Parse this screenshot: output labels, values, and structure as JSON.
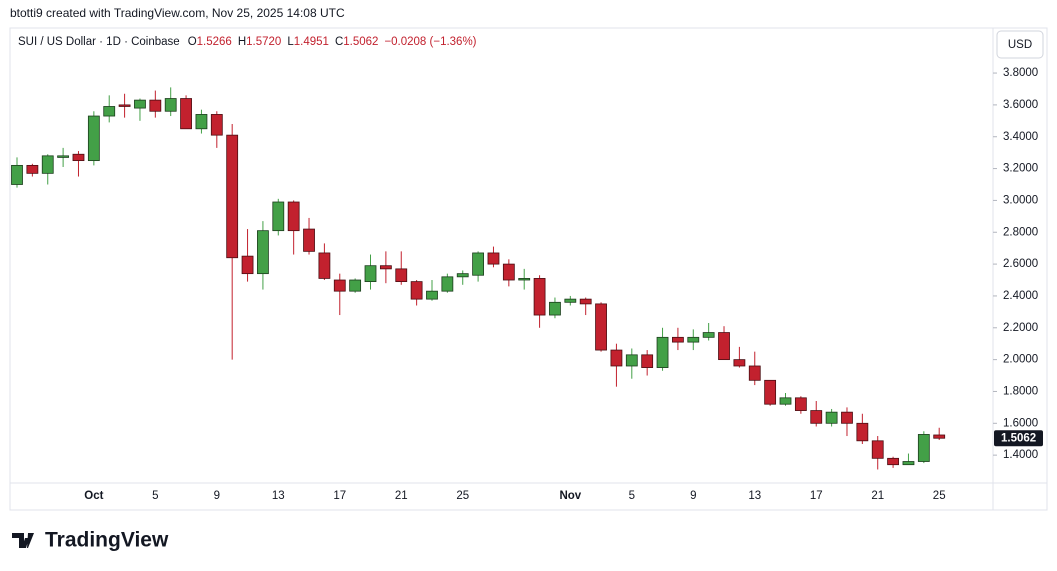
{
  "header": "btotti9 created with TradingView.com, Nov 25, 2025 14:08 UTC",
  "brand": "TradingView",
  "chart_data": {
    "type": "candlestick",
    "title": "SUI / US Dollar · 1D · Coinbase",
    "legend": [
      {
        "key": "O",
        "value": "1.5266"
      },
      {
        "key": "H",
        "value": "1.5720"
      },
      {
        "key": "L",
        "value": "1.4951"
      },
      {
        "key": "C",
        "value": "1.5062"
      },
      {
        "key": "",
        "value": "−0.0208 (−1.36%)"
      }
    ],
    "currency": "USD",
    "categories": [
      null,
      null,
      null,
      null,
      null,
      "Oct",
      null,
      null,
      null,
      "5",
      null,
      null,
      null,
      "9",
      null,
      null,
      null,
      "13",
      null,
      null,
      null,
      "17",
      null,
      null,
      null,
      "21",
      null,
      null,
      null,
      "25",
      null,
      null,
      null,
      null,
      null,
      null,
      "Nov",
      null,
      null,
      null,
      "5",
      null,
      null,
      null,
      "9",
      null,
      null,
      null,
      "13",
      null,
      null,
      null,
      "17",
      null,
      null,
      null,
      "21",
      null,
      null,
      null,
      "25"
    ],
    "open": [
      3.1,
      3.22,
      3.17,
      3.27,
      3.29,
      3.25,
      3.53,
      3.6,
      3.58,
      3.63,
      3.56,
      3.64,
      3.45,
      3.54,
      3.41,
      2.65,
      2.54,
      2.81,
      2.99,
      2.82,
      2.67,
      2.5,
      2.43,
      2.49,
      2.59,
      2.57,
      2.49,
      2.38,
      2.43,
      2.52,
      2.53,
      2.67,
      2.6,
      2.5,
      2.51,
      2.28,
      2.36,
      2.38,
      2.35,
      2.06,
      1.96,
      2.03,
      1.95,
      2.14,
      2.11,
      2.14,
      2.17,
      2.0,
      1.96,
      1.87,
      1.72,
      1.76,
      1.68,
      1.6,
      1.67,
      1.6,
      1.49,
      1.38,
      1.34,
      1.36,
      1.5266
    ],
    "high": [
      3.27,
      3.23,
      3.29,
      3.33,
      3.31,
      3.56,
      3.66,
      3.67,
      3.64,
      3.69,
      3.71,
      3.66,
      3.57,
      3.56,
      3.48,
      2.82,
      2.87,
      3.01,
      3.0,
      2.89,
      2.73,
      2.54,
      2.51,
      2.66,
      2.68,
      2.68,
      2.5,
      2.5,
      2.54,
      2.56,
      2.68,
      2.71,
      2.63,
      2.57,
      2.53,
      2.39,
      2.4,
      2.39,
      2.36,
      2.1,
      2.07,
      2.06,
      2.2,
      2.2,
      2.19,
      2.23,
      2.21,
      2.08,
      2.05,
      1.87,
      1.79,
      1.77,
      1.74,
      1.69,
      1.7,
      1.66,
      1.52,
      1.39,
      1.41,
      1.55,
      1.572
    ],
    "low": [
      3.08,
      3.15,
      3.1,
      3.21,
      3.15,
      3.22,
      3.49,
      3.52,
      3.5,
      3.52,
      3.53,
      3.45,
      3.42,
      3.33,
      2.0,
      2.49,
      2.44,
      2.78,
      2.66,
      2.66,
      2.5,
      2.28,
      2.42,
      2.44,
      2.48,
      2.47,
      2.34,
      2.37,
      2.42,
      2.47,
      2.49,
      2.58,
      2.46,
      2.44,
      2.2,
      2.26,
      2.34,
      2.28,
      2.05,
      1.83,
      1.88,
      1.9,
      1.93,
      2.06,
      2.06,
      2.12,
      2.0,
      1.95,
      1.84,
      1.71,
      1.71,
      1.66,
      1.58,
      1.58,
      1.52,
      1.47,
      1.31,
      1.32,
      1.34,
      1.35,
      1.4951
    ],
    "close": [
      3.22,
      3.17,
      3.28,
      3.28,
      3.25,
      3.53,
      3.59,
      3.59,
      3.63,
      3.56,
      3.64,
      3.45,
      3.54,
      3.41,
      2.64,
      2.54,
      2.81,
      2.99,
      2.81,
      2.68,
      2.51,
      2.43,
      2.5,
      2.59,
      2.57,
      2.49,
      2.38,
      2.43,
      2.52,
      2.54,
      2.67,
      2.6,
      2.5,
      2.51,
      2.28,
      2.36,
      2.38,
      2.35,
      2.06,
      1.96,
      2.03,
      1.95,
      2.14,
      2.11,
      2.14,
      2.17,
      2.0,
      1.96,
      1.87,
      1.72,
      1.76,
      1.68,
      1.6,
      1.67,
      1.6,
      1.49,
      1.38,
      1.34,
      1.36,
      1.53,
      1.5062
    ],
    "up_color": "#43a047",
    "down_color": "#c2212e",
    "last_price": {
      "value": 1.5062,
      "label": "1.5062"
    },
    "ylim": [
      1.225,
      4.083
    ],
    "yticks": [
      {
        "value": 1.4,
        "label": "1.4000"
      },
      {
        "value": 1.6,
        "label": "1.6000"
      },
      {
        "value": 1.8,
        "label": "1.8000"
      },
      {
        "value": 2.0,
        "label": "2.0000"
      },
      {
        "value": 2.2,
        "label": "2.2000"
      },
      {
        "value": 2.4,
        "label": "2.4000"
      },
      {
        "value": 2.6,
        "label": "2.6000"
      },
      {
        "value": 2.8,
        "label": "2.8000"
      },
      {
        "value": 3.0,
        "label": "3.0000"
      },
      {
        "value": 3.2,
        "label": "3.2000"
      },
      {
        "value": 3.4,
        "label": "3.4000"
      },
      {
        "value": 3.6,
        "label": "3.6000"
      },
      {
        "value": 3.8,
        "label": "3.8000"
      }
    ]
  }
}
